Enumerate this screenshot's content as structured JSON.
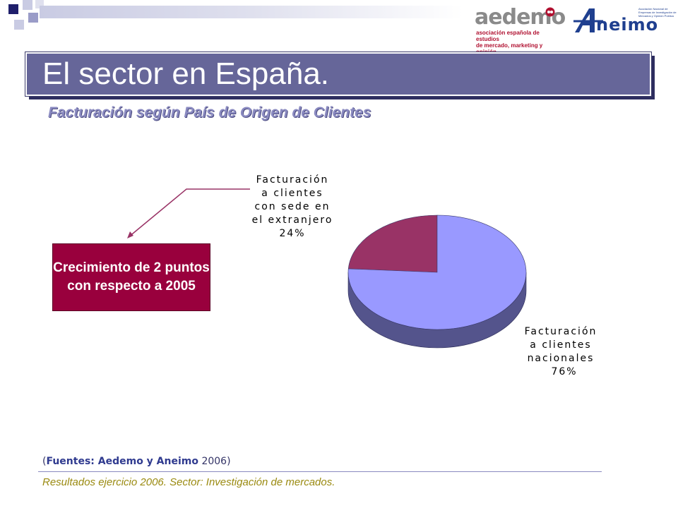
{
  "slide": {
    "title": "El sector en España.",
    "subtitle": "Facturación según País de Origen de Clientes",
    "callout": "Crecimiento de 2 puntos con respecto a 2005",
    "sources": {
      "open": "(",
      "bold": "Fuentes: Aedemo y Aneimo",
      "year": " 2006)"
    },
    "footer": "Resultados ejercicio 2006. Sector: Investigación de mercados."
  },
  "logos": {
    "aedemo_word": "aedemo",
    "aedemo_tagline": "asociación española de estudios de mercado, marketing y opinión",
    "aneimo_word": "neimo",
    "aneimo_tagline": "Asociación Nacional de Empresas de Investigación de Mercados y Opinión Pública"
  },
  "colors": {
    "title_bar": "#666699",
    "national": "#9999ff",
    "foreign": "#993366",
    "callout": "#99003d"
  },
  "chart_data": {
    "type": "pie",
    "style": "3d",
    "slices": [
      {
        "label": "Facturación a clientes con sede en el extranjero",
        "value": 24,
        "value_label": "24%",
        "color": "#993366"
      },
      {
        "label": "Facturación a clientes nacionales",
        "value": 76,
        "value_label": "76%",
        "color": "#9999ff"
      }
    ],
    "labels": {
      "foreign_lines": [
        "Facturación",
        "a clientes",
        "con sede en",
        "el extranjero",
        "24%"
      ],
      "national_lines": [
        "Facturación",
        "a clientes",
        "nacionales",
        "76%"
      ]
    }
  }
}
